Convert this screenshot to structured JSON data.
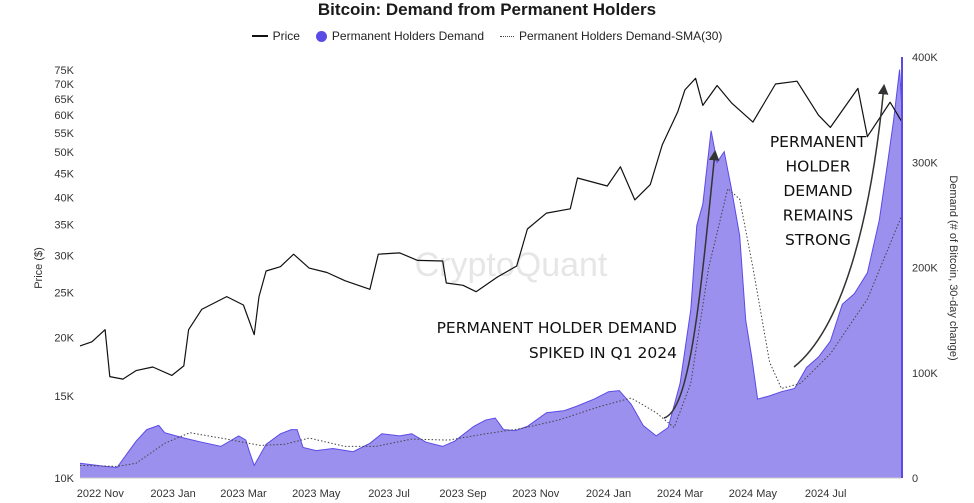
{
  "chart_data": {
    "type": "line+area",
    "title": "Bitcoin: Demand from Permanent Holders",
    "ylabel_left": "Price ($)",
    "ylabel_right": "Demand (# of Bitcoin, 30-day change)",
    "y_left_scale": "log",
    "y_left_lim": [
      10000,
      80000
    ],
    "y_right_lim": [
      0,
      400000
    ],
    "x_range": [
      "2022-10-15",
      "2024-09-03"
    ],
    "grid": false,
    "legend_position": "top-center",
    "watermark": "CryptoQuant",
    "colors": {
      "price": "#111111",
      "demand_fill": "#9b90ee",
      "demand_line": "#5a4be6",
      "sma": "#444444"
    },
    "y_left_ticks": [
      {
        "v": 10000,
        "label": "10K"
      },
      {
        "v": 15000,
        "label": "15K"
      },
      {
        "v": 20000,
        "label": "20K"
      },
      {
        "v": 25000,
        "label": "25K"
      },
      {
        "v": 30000,
        "label": "30K"
      },
      {
        "v": 35000,
        "label": "35K"
      },
      {
        "v": 40000,
        "label": "40K"
      },
      {
        "v": 45000,
        "label": "45K"
      },
      {
        "v": 50000,
        "label": "50K"
      },
      {
        "v": 55000,
        "label": "55K"
      },
      {
        "v": 60000,
        "label": "60K"
      },
      {
        "v": 65000,
        "label": "65K"
      },
      {
        "v": 70000,
        "label": "70K"
      },
      {
        "v": 75000,
        "label": "75K"
      }
    ],
    "y_right_ticks": [
      {
        "v": 0,
        "label": "0"
      },
      {
        "v": 100000,
        "label": "100K"
      },
      {
        "v": 200000,
        "label": "200K"
      },
      {
        "v": 300000,
        "label": "300K"
      },
      {
        "v": 400000,
        "label": "400K"
      }
    ],
    "x_ticks": [
      {
        "date": "2022-11-01",
        "label": "2022 Nov"
      },
      {
        "date": "2023-01-01",
        "label": "2023 Jan"
      },
      {
        "date": "2023-03-01",
        "label": "2023 Mar"
      },
      {
        "date": "2023-05-01",
        "label": "2023 May"
      },
      {
        "date": "2023-07-01",
        "label": "2023 Jul"
      },
      {
        "date": "2023-09-01",
        "label": "2023 Sep"
      },
      {
        "date": "2023-11-01",
        "label": "2023 Nov"
      },
      {
        "date": "2024-01-01",
        "label": "2024 Jan"
      },
      {
        "date": "2024-03-01",
        "label": "2024 Mar"
      },
      {
        "date": "2024-05-01",
        "label": "2024 May"
      },
      {
        "date": "2024-07-01",
        "label": "2024 Jul"
      }
    ],
    "series": [
      {
        "name": "Price",
        "points": [
          [
            "2022-10-15",
            19200
          ],
          [
            "2022-10-25",
            19600
          ],
          [
            "2022-11-05",
            20800
          ],
          [
            "2022-11-09",
            16500
          ],
          [
            "2022-11-20",
            16300
          ],
          [
            "2022-12-01",
            17000
          ],
          [
            "2022-12-15",
            17300
          ],
          [
            "2022-12-31",
            16600
          ],
          [
            "2023-01-10",
            17400
          ],
          [
            "2023-01-14",
            20800
          ],
          [
            "2023-01-25",
            23000
          ],
          [
            "2023-02-15",
            24500
          ],
          [
            "2023-03-01",
            23500
          ],
          [
            "2023-03-10",
            20300
          ],
          [
            "2023-03-14",
            24500
          ],
          [
            "2023-03-20",
            27800
          ],
          [
            "2023-04-01",
            28400
          ],
          [
            "2023-04-12",
            30200
          ],
          [
            "2023-04-25",
            28200
          ],
          [
            "2023-05-10",
            27600
          ],
          [
            "2023-05-25",
            26500
          ],
          [
            "2023-06-15",
            25400
          ],
          [
            "2023-06-22",
            30200
          ],
          [
            "2023-07-10",
            30400
          ],
          [
            "2023-07-25",
            29300
          ],
          [
            "2023-08-15",
            29200
          ],
          [
            "2023-08-18",
            26200
          ],
          [
            "2023-09-01",
            25900
          ],
          [
            "2023-09-12",
            25100
          ],
          [
            "2023-09-30",
            27000
          ],
          [
            "2023-10-16",
            28500
          ],
          [
            "2023-10-25",
            34200
          ],
          [
            "2023-11-10",
            37000
          ],
          [
            "2023-11-30",
            37800
          ],
          [
            "2023-12-06",
            44000
          ],
          [
            "2023-12-31",
            42300
          ],
          [
            "2024-01-11",
            46500
          ],
          [
            "2024-01-23",
            39500
          ],
          [
            "2024-02-05",
            42600
          ],
          [
            "2024-02-15",
            51800
          ],
          [
            "2024-02-28",
            61000
          ],
          [
            "2024-03-05",
            68000
          ],
          [
            "2024-03-14",
            72000
          ],
          [
            "2024-03-20",
            63000
          ],
          [
            "2024-04-01",
            69500
          ],
          [
            "2024-04-13",
            63800
          ],
          [
            "2024-05-01",
            58000
          ],
          [
            "2024-05-20",
            70000
          ],
          [
            "2024-06-07",
            71000
          ],
          [
            "2024-06-25",
            60000
          ],
          [
            "2024-07-05",
            56500
          ],
          [
            "2024-07-28",
            68500
          ],
          [
            "2024-08-05",
            54000
          ],
          [
            "2024-08-24",
            64000
          ],
          [
            "2024-09-03",
            58000
          ]
        ]
      },
      {
        "name": "Permanent Holders Demand",
        "points": [
          [
            "2022-10-15",
            14000
          ],
          [
            "2022-11-05",
            11000
          ],
          [
            "2022-11-15",
            10000
          ],
          [
            "2022-12-01",
            35000
          ],
          [
            "2022-12-10",
            46000
          ],
          [
            "2022-12-20",
            50000
          ],
          [
            "2022-12-25",
            43000
          ],
          [
            "2023-01-10",
            38000
          ],
          [
            "2023-01-25",
            34000
          ],
          [
            "2023-02-10",
            30000
          ],
          [
            "2023-02-25",
            40000
          ],
          [
            "2023-03-03",
            36000
          ],
          [
            "2023-03-06",
            25000
          ],
          [
            "2023-03-10",
            12000
          ],
          [
            "2023-03-20",
            32000
          ],
          [
            "2023-04-01",
            42000
          ],
          [
            "2023-04-10",
            46000
          ],
          [
            "2023-04-15",
            46000
          ],
          [
            "2023-04-20",
            29000
          ],
          [
            "2023-05-01",
            26000
          ],
          [
            "2023-05-15",
            28000
          ],
          [
            "2023-06-01",
            25000
          ],
          [
            "2023-06-15",
            33000
          ],
          [
            "2023-06-25",
            42000
          ],
          [
            "2023-07-10",
            40000
          ],
          [
            "2023-07-20",
            42000
          ],
          [
            "2023-08-01",
            34000
          ],
          [
            "2023-08-15",
            30000
          ],
          [
            "2023-08-25",
            35000
          ],
          [
            "2023-09-10",
            49000
          ],
          [
            "2023-09-20",
            55000
          ],
          [
            "2023-09-28",
            57000
          ],
          [
            "2023-10-05",
            46000
          ],
          [
            "2023-10-15",
            45000
          ],
          [
            "2023-10-25",
            49000
          ],
          [
            "2023-11-10",
            62000
          ],
          [
            "2023-11-25",
            64000
          ],
          [
            "2023-12-05",
            68000
          ],
          [
            "2023-12-20",
            75000
          ],
          [
            "2024-01-01",
            82000
          ],
          [
            "2024-01-10",
            83000
          ],
          [
            "2024-01-20",
            70000
          ],
          [
            "2024-01-30",
            50000
          ],
          [
            "2024-02-10",
            40000
          ],
          [
            "2024-02-20",
            48000
          ],
          [
            "2024-03-01",
            90000
          ],
          [
            "2024-03-10",
            160000
          ],
          [
            "2024-03-15",
            240000
          ],
          [
            "2024-03-20",
            260000
          ],
          [
            "2024-03-24",
            300000
          ],
          [
            "2024-03-27",
            330000
          ],
          [
            "2024-04-01",
            300000
          ],
          [
            "2024-04-07",
            310000
          ],
          [
            "2024-04-13",
            275000
          ],
          [
            "2024-04-20",
            230000
          ],
          [
            "2024-04-25",
            150000
          ],
          [
            "2024-04-30",
            115000
          ],
          [
            "2024-05-05",
            75000
          ],
          [
            "2024-05-15",
            78000
          ],
          [
            "2024-05-25",
            82000
          ],
          [
            "2024-06-05",
            85000
          ],
          [
            "2024-06-15",
            105000
          ],
          [
            "2024-06-25",
            115000
          ],
          [
            "2024-07-05",
            130000
          ],
          [
            "2024-07-15",
            165000
          ],
          [
            "2024-07-25",
            175000
          ],
          [
            "2024-08-05",
            195000
          ],
          [
            "2024-08-15",
            245000
          ],
          [
            "2024-08-22",
            300000
          ],
          [
            "2024-08-27",
            340000
          ],
          [
            "2024-09-01",
            388000
          ],
          [
            "2024-09-03",
            350000
          ]
        ]
      },
      {
        "name": "Permanent Holders Demand-SMA(30)",
        "points": [
          [
            "2022-10-15",
            12000
          ],
          [
            "2022-11-15",
            11000
          ],
          [
            "2022-12-01",
            14000
          ],
          [
            "2022-12-25",
            33000
          ],
          [
            "2023-01-15",
            43000
          ],
          [
            "2023-02-15",
            37000
          ],
          [
            "2023-03-15",
            31000
          ],
          [
            "2023-04-05",
            32000
          ],
          [
            "2023-04-25",
            38000
          ],
          [
            "2023-05-25",
            30000
          ],
          [
            "2023-06-20",
            30000
          ],
          [
            "2023-07-20",
            37000
          ],
          [
            "2023-08-20",
            36000
          ],
          [
            "2023-09-20",
            42000
          ],
          [
            "2023-10-20",
            47000
          ],
          [
            "2023-11-20",
            55000
          ],
          [
            "2023-12-25",
            68000
          ],
          [
            "2024-01-20",
            76000
          ],
          [
            "2024-02-10",
            62000
          ],
          [
            "2024-02-25",
            48000
          ],
          [
            "2024-03-10",
            90000
          ],
          [
            "2024-03-25",
            200000
          ],
          [
            "2024-04-10",
            275000
          ],
          [
            "2024-04-20",
            265000
          ],
          [
            "2024-05-01",
            200000
          ],
          [
            "2024-05-15",
            110000
          ],
          [
            "2024-05-25",
            85000
          ],
          [
            "2024-06-10",
            90000
          ],
          [
            "2024-07-05",
            118000
          ],
          [
            "2024-08-05",
            170000
          ],
          [
            "2024-09-03",
            250000
          ]
        ]
      }
    ],
    "annotations": [
      {
        "lines": [
          "PERMANENT HOLDER DEMAND",
          "SPIKED IN Q1 2024"
        ]
      },
      {
        "lines": [
          "PERMANENT",
          "HOLDER",
          "DEMAND",
          "REMAINS",
          "STRONG"
        ]
      }
    ]
  },
  "legend": {
    "price": "Price",
    "demand": "Permanent Holders Demand",
    "sma": "Permanent Holders Demand-SMA(30)"
  }
}
